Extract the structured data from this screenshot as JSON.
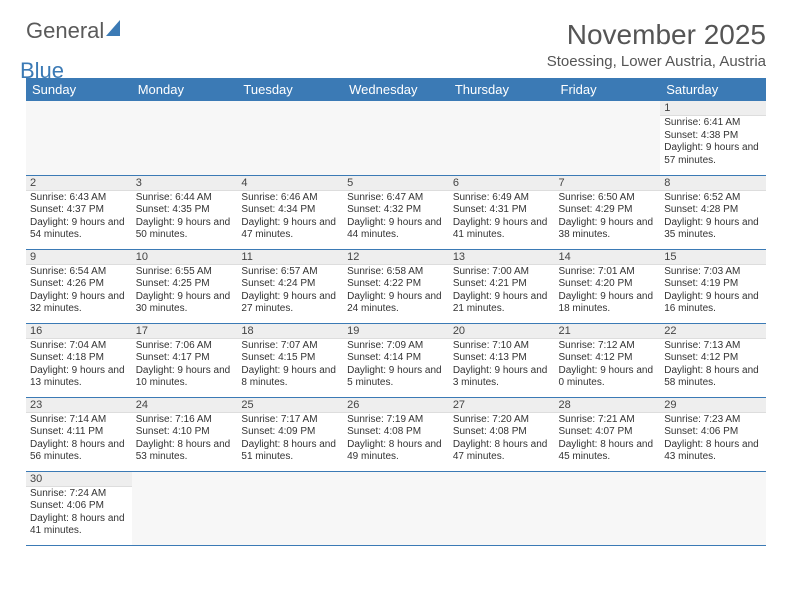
{
  "logo": {
    "text1": "General",
    "text2": "Blue"
  },
  "title": "November 2025",
  "location": "Stoessing, Lower Austria, Austria",
  "header_bg": "#3b7ab5",
  "header_text_color": "#ffffff",
  "grid_line_color": "#3b7ab5",
  "daynum_bg": "#eeeeee",
  "font_family": "Arial",
  "day_headers": [
    "Sunday",
    "Monday",
    "Tuesday",
    "Wednesday",
    "Thursday",
    "Friday",
    "Saturday"
  ],
  "weeks": [
    [
      null,
      null,
      null,
      null,
      null,
      null,
      {
        "n": "1",
        "sunrise": "Sunrise: 6:41 AM",
        "sunset": "Sunset: 4:38 PM",
        "daylight": "Daylight: 9 hours and 57 minutes."
      }
    ],
    [
      {
        "n": "2",
        "sunrise": "Sunrise: 6:43 AM",
        "sunset": "Sunset: 4:37 PM",
        "daylight": "Daylight: 9 hours and 54 minutes."
      },
      {
        "n": "3",
        "sunrise": "Sunrise: 6:44 AM",
        "sunset": "Sunset: 4:35 PM",
        "daylight": "Daylight: 9 hours and 50 minutes."
      },
      {
        "n": "4",
        "sunrise": "Sunrise: 6:46 AM",
        "sunset": "Sunset: 4:34 PM",
        "daylight": "Daylight: 9 hours and 47 minutes."
      },
      {
        "n": "5",
        "sunrise": "Sunrise: 6:47 AM",
        "sunset": "Sunset: 4:32 PM",
        "daylight": "Daylight: 9 hours and 44 minutes."
      },
      {
        "n": "6",
        "sunrise": "Sunrise: 6:49 AM",
        "sunset": "Sunset: 4:31 PM",
        "daylight": "Daylight: 9 hours and 41 minutes."
      },
      {
        "n": "7",
        "sunrise": "Sunrise: 6:50 AM",
        "sunset": "Sunset: 4:29 PM",
        "daylight": "Daylight: 9 hours and 38 minutes."
      },
      {
        "n": "8",
        "sunrise": "Sunrise: 6:52 AM",
        "sunset": "Sunset: 4:28 PM",
        "daylight": "Daylight: 9 hours and 35 minutes."
      }
    ],
    [
      {
        "n": "9",
        "sunrise": "Sunrise: 6:54 AM",
        "sunset": "Sunset: 4:26 PM",
        "daylight": "Daylight: 9 hours and 32 minutes."
      },
      {
        "n": "10",
        "sunrise": "Sunrise: 6:55 AM",
        "sunset": "Sunset: 4:25 PM",
        "daylight": "Daylight: 9 hours and 30 minutes."
      },
      {
        "n": "11",
        "sunrise": "Sunrise: 6:57 AM",
        "sunset": "Sunset: 4:24 PM",
        "daylight": "Daylight: 9 hours and 27 minutes."
      },
      {
        "n": "12",
        "sunrise": "Sunrise: 6:58 AM",
        "sunset": "Sunset: 4:22 PM",
        "daylight": "Daylight: 9 hours and 24 minutes."
      },
      {
        "n": "13",
        "sunrise": "Sunrise: 7:00 AM",
        "sunset": "Sunset: 4:21 PM",
        "daylight": "Daylight: 9 hours and 21 minutes."
      },
      {
        "n": "14",
        "sunrise": "Sunrise: 7:01 AM",
        "sunset": "Sunset: 4:20 PM",
        "daylight": "Daylight: 9 hours and 18 minutes."
      },
      {
        "n": "15",
        "sunrise": "Sunrise: 7:03 AM",
        "sunset": "Sunset: 4:19 PM",
        "daylight": "Daylight: 9 hours and 16 minutes."
      }
    ],
    [
      {
        "n": "16",
        "sunrise": "Sunrise: 7:04 AM",
        "sunset": "Sunset: 4:18 PM",
        "daylight": "Daylight: 9 hours and 13 minutes."
      },
      {
        "n": "17",
        "sunrise": "Sunrise: 7:06 AM",
        "sunset": "Sunset: 4:17 PM",
        "daylight": "Daylight: 9 hours and 10 minutes."
      },
      {
        "n": "18",
        "sunrise": "Sunrise: 7:07 AM",
        "sunset": "Sunset: 4:15 PM",
        "daylight": "Daylight: 9 hours and 8 minutes."
      },
      {
        "n": "19",
        "sunrise": "Sunrise: 7:09 AM",
        "sunset": "Sunset: 4:14 PM",
        "daylight": "Daylight: 9 hours and 5 minutes."
      },
      {
        "n": "20",
        "sunrise": "Sunrise: 7:10 AM",
        "sunset": "Sunset: 4:13 PM",
        "daylight": "Daylight: 9 hours and 3 minutes."
      },
      {
        "n": "21",
        "sunrise": "Sunrise: 7:12 AM",
        "sunset": "Sunset: 4:12 PM",
        "daylight": "Daylight: 9 hours and 0 minutes."
      },
      {
        "n": "22",
        "sunrise": "Sunrise: 7:13 AM",
        "sunset": "Sunset: 4:12 PM",
        "daylight": "Daylight: 8 hours and 58 minutes."
      }
    ],
    [
      {
        "n": "23",
        "sunrise": "Sunrise: 7:14 AM",
        "sunset": "Sunset: 4:11 PM",
        "daylight": "Daylight: 8 hours and 56 minutes."
      },
      {
        "n": "24",
        "sunrise": "Sunrise: 7:16 AM",
        "sunset": "Sunset: 4:10 PM",
        "daylight": "Daylight: 8 hours and 53 minutes."
      },
      {
        "n": "25",
        "sunrise": "Sunrise: 7:17 AM",
        "sunset": "Sunset: 4:09 PM",
        "daylight": "Daylight: 8 hours and 51 minutes."
      },
      {
        "n": "26",
        "sunrise": "Sunrise: 7:19 AM",
        "sunset": "Sunset: 4:08 PM",
        "daylight": "Daylight: 8 hours and 49 minutes."
      },
      {
        "n": "27",
        "sunrise": "Sunrise: 7:20 AM",
        "sunset": "Sunset: 4:08 PM",
        "daylight": "Daylight: 8 hours and 47 minutes."
      },
      {
        "n": "28",
        "sunrise": "Sunrise: 7:21 AM",
        "sunset": "Sunset: 4:07 PM",
        "daylight": "Daylight: 8 hours and 45 minutes."
      },
      {
        "n": "29",
        "sunrise": "Sunrise: 7:23 AM",
        "sunset": "Sunset: 4:06 PM",
        "daylight": "Daylight: 8 hours and 43 minutes."
      }
    ],
    [
      {
        "n": "30",
        "sunrise": "Sunrise: 7:24 AM",
        "sunset": "Sunset: 4:06 PM",
        "daylight": "Daylight: 8 hours and 41 minutes."
      },
      null,
      null,
      null,
      null,
      null,
      null
    ]
  ]
}
